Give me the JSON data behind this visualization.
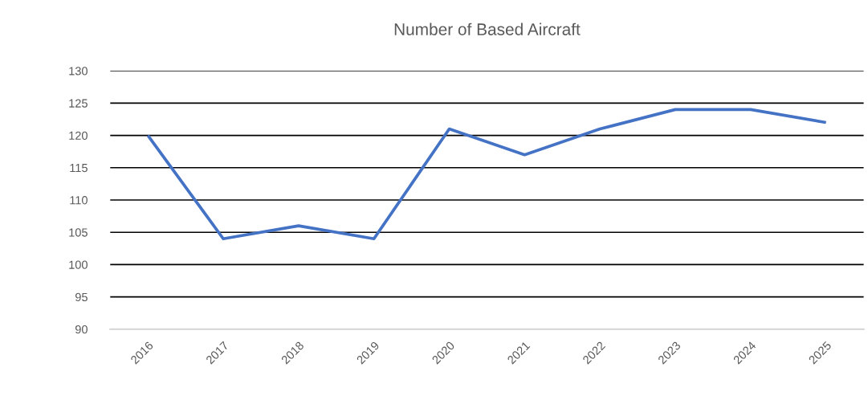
{
  "chart_data": {
    "type": "line",
    "title": "Number of Based Aircraft",
    "categories": [
      "2016",
      "2017",
      "2018",
      "2019",
      "2020",
      "2021",
      "2022",
      "2023",
      "2024",
      "2025"
    ],
    "series": [
      {
        "color": "#4472c4",
        "values": [
          120,
          104,
          106,
          104,
          121,
          117,
          121,
          124,
          124,
          122
        ]
      }
    ],
    "ylim": [
      90,
      130
    ],
    "yticks": [
      90,
      95,
      100,
      105,
      110,
      115,
      120,
      125,
      130
    ],
    "grid": "y",
    "line_style": "solid",
    "marker": "none"
  }
}
